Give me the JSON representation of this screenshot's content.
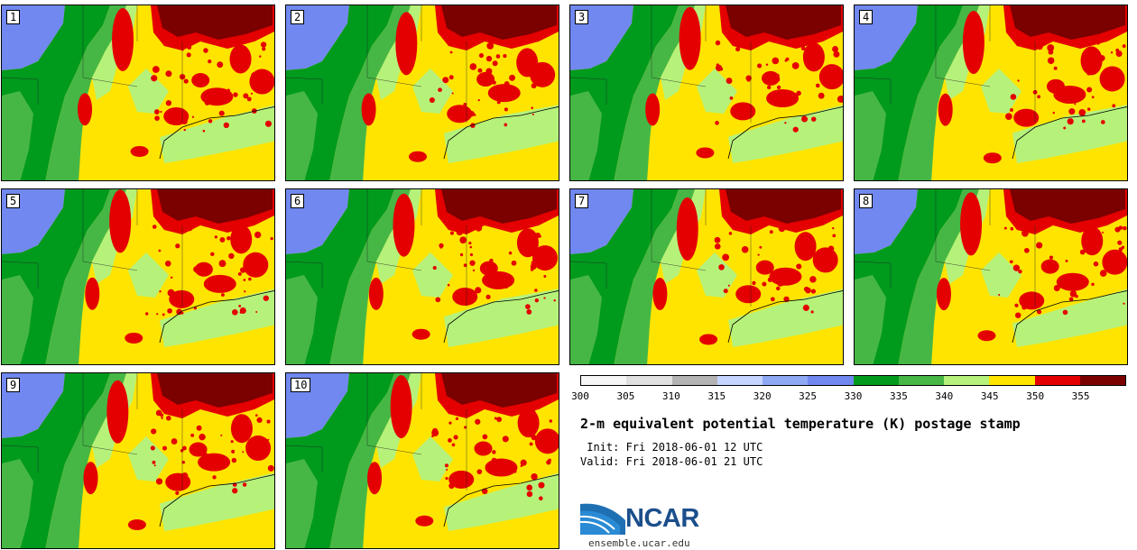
{
  "figure": {
    "title": "2-m equivalent potential temperature (K) postage stamp",
    "init": " Init: Fri 2018-06-01 12 UTC",
    "valid": "Valid: Fri 2018-06-01 21 UTC",
    "logo_text": "NCAR",
    "site": "ensemble.ucar.edu"
  },
  "members": [
    "1",
    "2",
    "3",
    "4",
    "5",
    "6",
    "7",
    "8",
    "9",
    "10"
  ],
  "colorbar": {
    "ticks": [
      "300",
      "305",
      "310",
      "315",
      "320",
      "325",
      "330",
      "335",
      "340",
      "345",
      "350",
      "355"
    ],
    "colors": [
      "#f5f5f5",
      "#e0e0e0",
      "#b3b3b3",
      "#c4d4ff",
      "#8fa8f4",
      "#7088ef",
      "#009a1d",
      "#46b745",
      "#b6f27a",
      "#ffe400",
      "#e40000",
      "#7b0000"
    ]
  }
}
